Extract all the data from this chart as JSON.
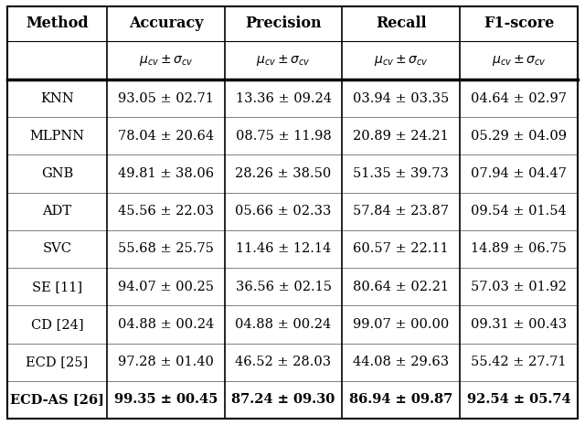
{
  "headers_row1": [
    "Method",
    "Accuracy",
    "Precision",
    "Recall",
    "F1-score"
  ],
  "rows": [
    [
      "KNN",
      "93.05 ± 02.71",
      "13.36 ± 09.24",
      "03.94 ± 03.35",
      "04.64 ± 02.97"
    ],
    [
      "MLPNN",
      "78.04 ± 20.64",
      "08.75 ± 11.98",
      "20.89 ± 24.21",
      "05.29 ± 04.09"
    ],
    [
      "GNB",
      "49.81 ± 38.06",
      "28.26 ± 38.50",
      "51.35 ± 39.73",
      "07.94 ± 04.47"
    ],
    [
      "ADT",
      "45.56 ± 22.03",
      "05.66 ± 02.33",
      "57.84 ± 23.87",
      "09.54 ± 01.54"
    ],
    [
      "SVC",
      "55.68 ± 25.75",
      "11.46 ± 12.14",
      "60.57 ± 22.11",
      "14.89 ± 06.75"
    ],
    [
      "SE [11]",
      "94.07 ± 00.25",
      "36.56 ± 02.15",
      "80.64 ± 02.21",
      "57.03 ± 01.92"
    ],
    [
      "CD [24]",
      "04.88 ± 00.24",
      "04.88 ± 00.24",
      "99.07 ± 00.00",
      "09.31 ± 00.43"
    ],
    [
      "ECD [25]",
      "97.28 ± 01.40",
      "46.52 ± 28.03",
      "44.08 ± 29.63",
      "55.42 ± 27.71"
    ],
    [
      "ECD-AS [26]",
      "99.35 ± 00.45",
      "87.24 ± 09.30",
      "86.94 ± 09.87",
      "92.54 ± 05.74"
    ]
  ],
  "bold_row": 8,
  "bg_color": "#ffffff",
  "border_color": "#000000",
  "header_fontsize": 11.5,
  "cell_fontsize": 10.5,
  "subheader_fontsize": 10
}
